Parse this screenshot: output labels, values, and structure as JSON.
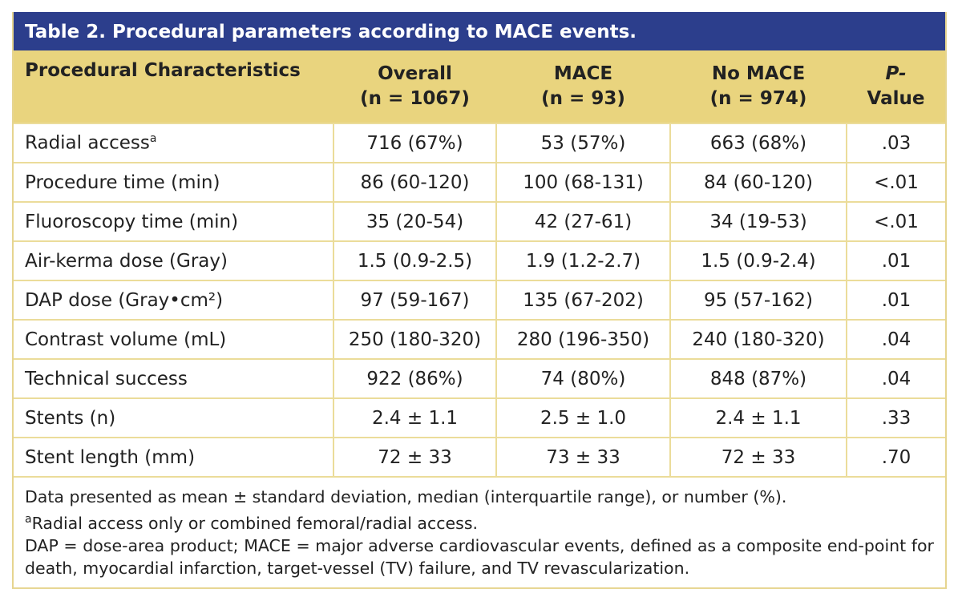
{
  "title": "Table 2. Procedural parameters according to MACE events.",
  "table": {
    "header": [
      {
        "lines": [
          "Procedural Characteristics"
        ]
      },
      {
        "lines": [
          "Overall",
          "(n = 1067)"
        ]
      },
      {
        "lines": [
          "MACE",
          "(n = 93)"
        ]
      },
      {
        "lines": [
          "No MACE",
          "(n = 974)"
        ]
      },
      {
        "lines": [
          "P-",
          "Value"
        ]
      }
    ],
    "rows": [
      {
        "label": "Radial access",
        "sup": "a",
        "cells": [
          "716 (67%)",
          "53 (57%)",
          "663 (68%)",
          ".03"
        ]
      },
      {
        "label": "Procedure time (min)",
        "cells": [
          "86 (60-120)",
          "100 (68-131)",
          "84 (60-120)",
          "<.01"
        ]
      },
      {
        "label": "Fluoroscopy time (min)",
        "cells": [
          "35 (20-54)",
          "42 (27-61)",
          "34 (19-53)",
          "<.01"
        ]
      },
      {
        "label": "Air-kerma dose (Gray)",
        "cells": [
          "1.5 (0.9-2.5)",
          "1.9 (1.2-2.7)",
          "1.5 (0.9-2.4)",
          ".01"
        ]
      },
      {
        "label": "DAP dose (Gray•cm²)",
        "cells": [
          "97 (59-167)",
          "135 (67-202)",
          "95 (57-162)",
          ".01"
        ]
      },
      {
        "label": "Contrast volume (mL)",
        "cells": [
          "250 (180-320)",
          "280 (196-350)",
          "240 (180-320)",
          ".04"
        ]
      },
      {
        "label": "Technical success",
        "cells": [
          "922 (86%)",
          "74 (80%)",
          "848 (87%)",
          ".04"
        ]
      },
      {
        "label": "Stents (n)",
        "cells": [
          "2.4 ± 1.1",
          "2.5 ± 1.0",
          "2.4 ± 1.1",
          ".33"
        ]
      },
      {
        "label": "Stent length (mm)",
        "cells": [
          "72 ± 33",
          "73 ± 33",
          "72 ± 33",
          ".70"
        ]
      }
    ]
  },
  "footnotes": [
    {
      "text": "Data presented as mean ± standard deviation, median (interquartile range), or number (%)."
    },
    {
      "sup": "a",
      "text": "Radial access only or combined femoral/radial access."
    },
    {
      "text": "DAP = dose-area product; MACE = major adverse cardiovascular events, defined as a composite end-point for death, myocardial infarction, target-vessel (TV) failure, and TV revascularization."
    }
  ]
}
